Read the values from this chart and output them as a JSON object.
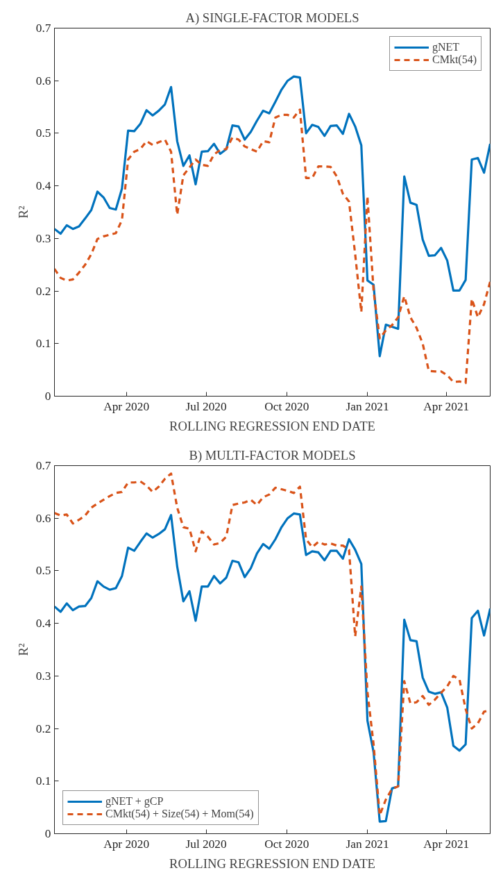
{
  "chart_data": [
    {
      "type": "line",
      "title": "A) SINGLE-FACTOR MODELS",
      "xlabel": "ROLLING REGRESSION END DATE",
      "ylabel": "R²",
      "x": [
        "2020-01-10",
        "2020-01-17",
        "2020-01-24",
        "2020-01-31",
        "2020-02-07",
        "2020-02-14",
        "2020-02-21",
        "2020-02-28",
        "2020-03-06",
        "2020-03-13",
        "2020-03-20",
        "2020-03-27",
        "2020-04-03",
        "2020-04-10",
        "2020-04-17",
        "2020-04-24",
        "2020-05-01",
        "2020-05-08",
        "2020-05-15",
        "2020-05-22",
        "2020-05-29",
        "2020-06-05",
        "2020-06-12",
        "2020-06-19",
        "2020-06-26",
        "2020-07-03",
        "2020-07-10",
        "2020-07-17",
        "2020-07-24",
        "2020-07-31",
        "2020-08-07",
        "2020-08-14",
        "2020-08-21",
        "2020-08-28",
        "2020-09-04",
        "2020-09-11",
        "2020-09-18",
        "2020-09-25",
        "2020-10-02",
        "2020-10-09",
        "2020-10-16",
        "2020-10-23",
        "2020-10-30",
        "2020-11-06",
        "2020-11-13",
        "2020-11-20",
        "2020-11-27",
        "2020-12-04",
        "2020-12-11",
        "2020-12-18",
        "2020-12-25",
        "2021-01-01",
        "2021-01-08",
        "2021-01-15",
        "2021-01-22",
        "2021-01-29",
        "2021-02-05",
        "2021-02-12",
        "2021-02-19",
        "2021-02-26",
        "2021-03-05",
        "2021-03-12",
        "2021-03-19",
        "2021-03-26",
        "2021-04-02",
        "2021-04-09",
        "2021-04-16",
        "2021-04-23",
        "2021-04-30",
        "2021-05-07",
        "2021-05-14",
        "2021-05-21"
      ],
      "series": [
        {
          "name": "gNET",
          "color": "#0072bd",
          "line_style": "solid",
          "values": [
            0.318,
            0.309,
            0.325,
            0.318,
            0.323,
            0.338,
            0.354,
            0.389,
            0.378,
            0.358,
            0.355,
            0.395,
            0.505,
            0.504,
            0.518,
            0.544,
            0.534,
            0.543,
            0.555,
            0.588,
            0.485,
            0.438,
            0.458,
            0.403,
            0.465,
            0.466,
            0.48,
            0.461,
            0.47,
            0.515,
            0.513,
            0.488,
            0.503,
            0.524,
            0.543,
            0.538,
            0.56,
            0.583,
            0.6,
            0.608,
            0.606,
            0.5,
            0.516,
            0.512,
            0.495,
            0.514,
            0.515,
            0.499,
            0.537,
            0.513,
            0.477,
            0.22,
            0.212,
            0.076,
            0.136,
            0.132,
            0.128,
            0.418,
            0.368,
            0.364,
            0.298,
            0.267,
            0.268,
            0.282,
            0.258,
            0.201,
            0.201,
            0.221,
            0.45,
            0.453,
            0.425,
            0.48
          ]
        },
        {
          "name": "CMkt(54)",
          "color": "#d95319",
          "line_style": "dashed",
          "values": [
            0.242,
            0.225,
            0.22,
            0.222,
            0.235,
            0.25,
            0.27,
            0.299,
            0.304,
            0.307,
            0.31,
            0.335,
            0.45,
            0.465,
            0.47,
            0.485,
            0.478,
            0.483,
            0.488,
            0.465,
            0.345,
            0.42,
            0.435,
            0.45,
            0.44,
            0.438,
            0.46,
            0.468,
            0.47,
            0.492,
            0.488,
            0.475,
            0.47,
            0.465,
            0.485,
            0.483,
            0.53,
            0.535,
            0.535,
            0.53,
            0.545,
            0.415,
            0.415,
            0.437,
            0.437,
            0.436,
            0.418,
            0.385,
            0.37,
            0.27,
            0.16,
            0.38,
            0.2,
            0.11,
            0.125,
            0.135,
            0.15,
            0.19,
            0.15,
            0.13,
            0.1,
            0.048,
            0.047,
            0.047,
            0.04,
            0.027,
            0.028,
            0.025,
            0.185,
            0.15,
            0.175,
            0.218
          ]
        }
      ],
      "xlim": [
        "2020-01-10",
        "2021-05-21"
      ],
      "xticks": [
        {
          "value": "2020-04-01",
          "label": "Apr 2020"
        },
        {
          "value": "2020-07-01",
          "label": "Jul 2020"
        },
        {
          "value": "2020-10-01",
          "label": "Oct 2020"
        },
        {
          "value": "2021-01-01",
          "label": "Jan 2021"
        },
        {
          "value": "2021-04-01",
          "label": "Apr 2021"
        }
      ],
      "ylim": [
        0,
        0.7
      ],
      "yticks": [
        0,
        0.1,
        0.2,
        0.3,
        0.4,
        0.5,
        0.6,
        0.7
      ],
      "legend": "top right",
      "grid": false
    },
    {
      "type": "line",
      "title": "B) MULTI-FACTOR MODELS",
      "xlabel": "ROLLING REGRESSION END DATE",
      "ylabel": "R²",
      "x": [
        "2020-01-10",
        "2020-01-17",
        "2020-01-24",
        "2020-01-31",
        "2020-02-07",
        "2020-02-14",
        "2020-02-21",
        "2020-02-28",
        "2020-03-06",
        "2020-03-13",
        "2020-03-20",
        "2020-03-27",
        "2020-04-03",
        "2020-04-10",
        "2020-04-17",
        "2020-04-24",
        "2020-05-01",
        "2020-05-08",
        "2020-05-15",
        "2020-05-22",
        "2020-05-29",
        "2020-06-05",
        "2020-06-12",
        "2020-06-19",
        "2020-06-26",
        "2020-07-03",
        "2020-07-10",
        "2020-07-17",
        "2020-07-24",
        "2020-07-31",
        "2020-08-07",
        "2020-08-14",
        "2020-08-21",
        "2020-08-28",
        "2020-09-04",
        "2020-09-11",
        "2020-09-18",
        "2020-09-25",
        "2020-10-02",
        "2020-10-09",
        "2020-10-16",
        "2020-10-23",
        "2020-10-30",
        "2020-11-06",
        "2020-11-13",
        "2020-11-20",
        "2020-11-27",
        "2020-12-04",
        "2020-12-11",
        "2020-12-18",
        "2020-12-25",
        "2021-01-01",
        "2021-01-08",
        "2021-01-15",
        "2021-01-22",
        "2021-01-29",
        "2021-02-05",
        "2021-02-12",
        "2021-02-19",
        "2021-02-26",
        "2021-03-05",
        "2021-03-12",
        "2021-03-19",
        "2021-03-26",
        "2021-04-02",
        "2021-04-09",
        "2021-04-16",
        "2021-04-23",
        "2021-04-30",
        "2021-05-07",
        "2021-05-14",
        "2021-05-21"
      ],
      "series": [
        {
          "name": "gNET + gCP",
          "color": "#0072bd",
          "line_style": "solid",
          "values": [
            0.432,
            0.422,
            0.438,
            0.425,
            0.432,
            0.433,
            0.448,
            0.48,
            0.47,
            0.464,
            0.467,
            0.49,
            0.544,
            0.538,
            0.555,
            0.571,
            0.563,
            0.57,
            0.579,
            0.606,
            0.508,
            0.442,
            0.461,
            0.405,
            0.47,
            0.47,
            0.49,
            0.476,
            0.487,
            0.519,
            0.516,
            0.488,
            0.505,
            0.533,
            0.551,
            0.542,
            0.56,
            0.583,
            0.6,
            0.609,
            0.607,
            0.53,
            0.537,
            0.535,
            0.52,
            0.538,
            0.538,
            0.523,
            0.56,
            0.54,
            0.513,
            0.215,
            0.155,
            0.023,
            0.024,
            0.086,
            0.09,
            0.407,
            0.368,
            0.366,
            0.297,
            0.27,
            0.266,
            0.269,
            0.24,
            0.167,
            0.158,
            0.17,
            0.41,
            0.424,
            0.377,
            0.428
          ]
        },
        {
          "name": "CMkt(54) + Size(54) + Mom(54)",
          "color": "#d95319",
          "line_style": "dashed",
          "values": [
            0.61,
            0.605,
            0.607,
            0.59,
            0.597,
            0.605,
            0.62,
            0.628,
            0.635,
            0.642,
            0.648,
            0.65,
            0.668,
            0.668,
            0.67,
            0.662,
            0.65,
            0.66,
            0.675,
            0.685,
            0.62,
            0.583,
            0.58,
            0.537,
            0.575,
            0.565,
            0.55,
            0.553,
            0.565,
            0.625,
            0.628,
            0.63,
            0.635,
            0.625,
            0.64,
            0.645,
            0.658,
            0.655,
            0.652,
            0.648,
            0.66,
            0.56,
            0.545,
            0.555,
            0.55,
            0.552,
            0.548,
            0.548,
            0.54,
            0.375,
            0.47,
            0.27,
            0.17,
            0.035,
            0.065,
            0.085,
            0.09,
            0.29,
            0.248,
            0.25,
            0.262,
            0.245,
            0.255,
            0.268,
            0.28,
            0.3,
            0.293,
            0.237,
            0.2,
            0.21,
            0.232,
            0.235
          ]
        }
      ],
      "xlim": [
        "2020-01-10",
        "2021-05-21"
      ],
      "xticks": [
        {
          "value": "2020-04-01",
          "label": "Apr 2020"
        },
        {
          "value": "2020-07-01",
          "label": "Jul 2020"
        },
        {
          "value": "2020-10-01",
          "label": "Oct 2020"
        },
        {
          "value": "2021-01-01",
          "label": "Jan 2021"
        },
        {
          "value": "2021-04-01",
          "label": "Apr 2021"
        }
      ],
      "ylim": [
        0,
        0.7
      ],
      "yticks": [
        0,
        0.1,
        0.2,
        0.3,
        0.4,
        0.5,
        0.6,
        0.7
      ],
      "legend": "bottom left",
      "grid": false
    }
  ]
}
